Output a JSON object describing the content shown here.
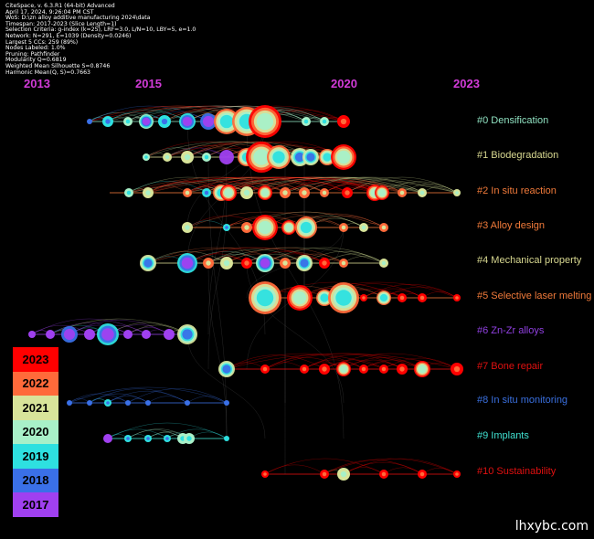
{
  "header": {
    "lines": [
      "CiteSpace, v. 6.3.R1 (64-bit) Advanced",
      "April 17, 2024, 9:26:04 PM CST",
      "WoS: D:\\zn alloy additive manufacturing 2024\\data",
      "Timespan: 2017-2023 (Slice Length=1)",
      "Selection Criteria: g-index (k=25), LRF=3.0, L/N=10, LBY=5, e=1.0",
      "Network: N=291, E=1039 (Density=0.0246)",
      "Largest 5 CCs: 259 (89%)",
      "Nodes Labeled: 1.0%",
      "Pruning: Pathfinder",
      "Modularity Q=0.6819",
      "Weighted Mean Silhouette S=0.8746",
      "Harmonic Mean(Q, S)=0.7663"
    ]
  },
  "timeline": {
    "years": [
      "2013",
      "2015",
      "2020",
      "2023"
    ],
    "year_color": "#d23bd8"
  },
  "clusters": [
    {
      "label": "#0 Densification",
      "color": "#8fe0c0"
    },
    {
      "label": "#1 Biodegradation",
      "color": "#d8d890"
    },
    {
      "label": "#2 In situ reaction",
      "color": "#f07a3a"
    },
    {
      "label": "#3 Alloy design",
      "color": "#f07a3a"
    },
    {
      "label": "#4 Mechanical property",
      "color": "#d8d890"
    },
    {
      "label": "#5 Selective laser melting",
      "color": "#f07a3a"
    },
    {
      "label": "#6 Zn-Zr alloys",
      "color": "#9040e0"
    },
    {
      "label": "#7 Bone repair",
      "color": "#e01010"
    },
    {
      "label": "#8 In situ monitoring",
      "color": "#3a70e0"
    },
    {
      "label": "#9 Implants",
      "color": "#40e0d0"
    },
    {
      "label": "#10 Sustainability",
      "color": "#e01010"
    }
  ],
  "legend": {
    "items": [
      {
        "year": "2023",
        "color": "#ff0000"
      },
      {
        "year": "2022",
        "color": "#ff6a3a"
      },
      {
        "year": "2021",
        "color": "#d8e49a"
      },
      {
        "year": "2020",
        "color": "#a8f0c8"
      },
      {
        "year": "2019",
        "color": "#2ee0e0"
      },
      {
        "year": "2018",
        "color": "#3a70e8"
      },
      {
        "year": "2017",
        "color": "#a040f0"
      }
    ]
  },
  "watermark": "lhxybc.com"
}
